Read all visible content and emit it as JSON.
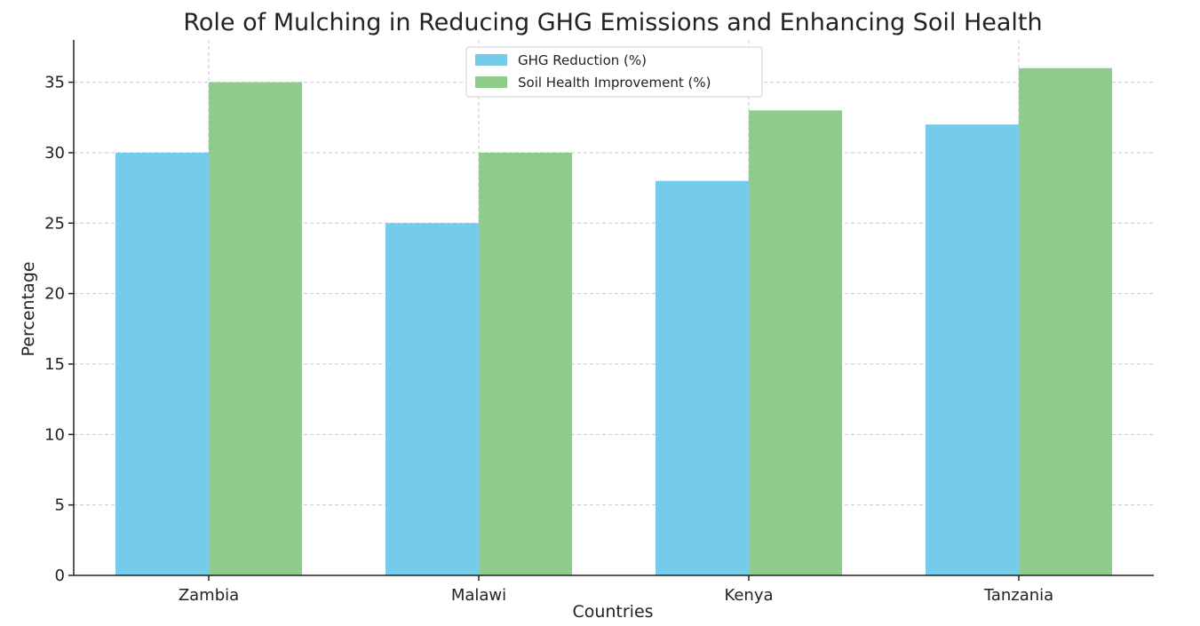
{
  "chart_data": {
    "type": "bar",
    "title": "Role of Mulching in Reducing GHG Emissions and Enhancing Soil Health",
    "xlabel": "Countries",
    "ylabel": "Percentage",
    "categories": [
      "Zambia",
      "Malawi",
      "Kenya",
      "Tanzania"
    ],
    "series": [
      {
        "name": "GHG Reduction (%)",
        "values": [
          30,
          25,
          28,
          32
        ],
        "color": "#75cbea"
      },
      {
        "name": "Soil Health Improvement (%)",
        "values": [
          35,
          30,
          33,
          36
        ],
        "color": "#8fcb8a"
      }
    ],
    "ylim": [
      0,
      38
    ],
    "yticks": [
      0,
      5,
      10,
      15,
      20,
      25,
      30,
      35
    ],
    "grid": true,
    "legend_position": "top-center"
  }
}
